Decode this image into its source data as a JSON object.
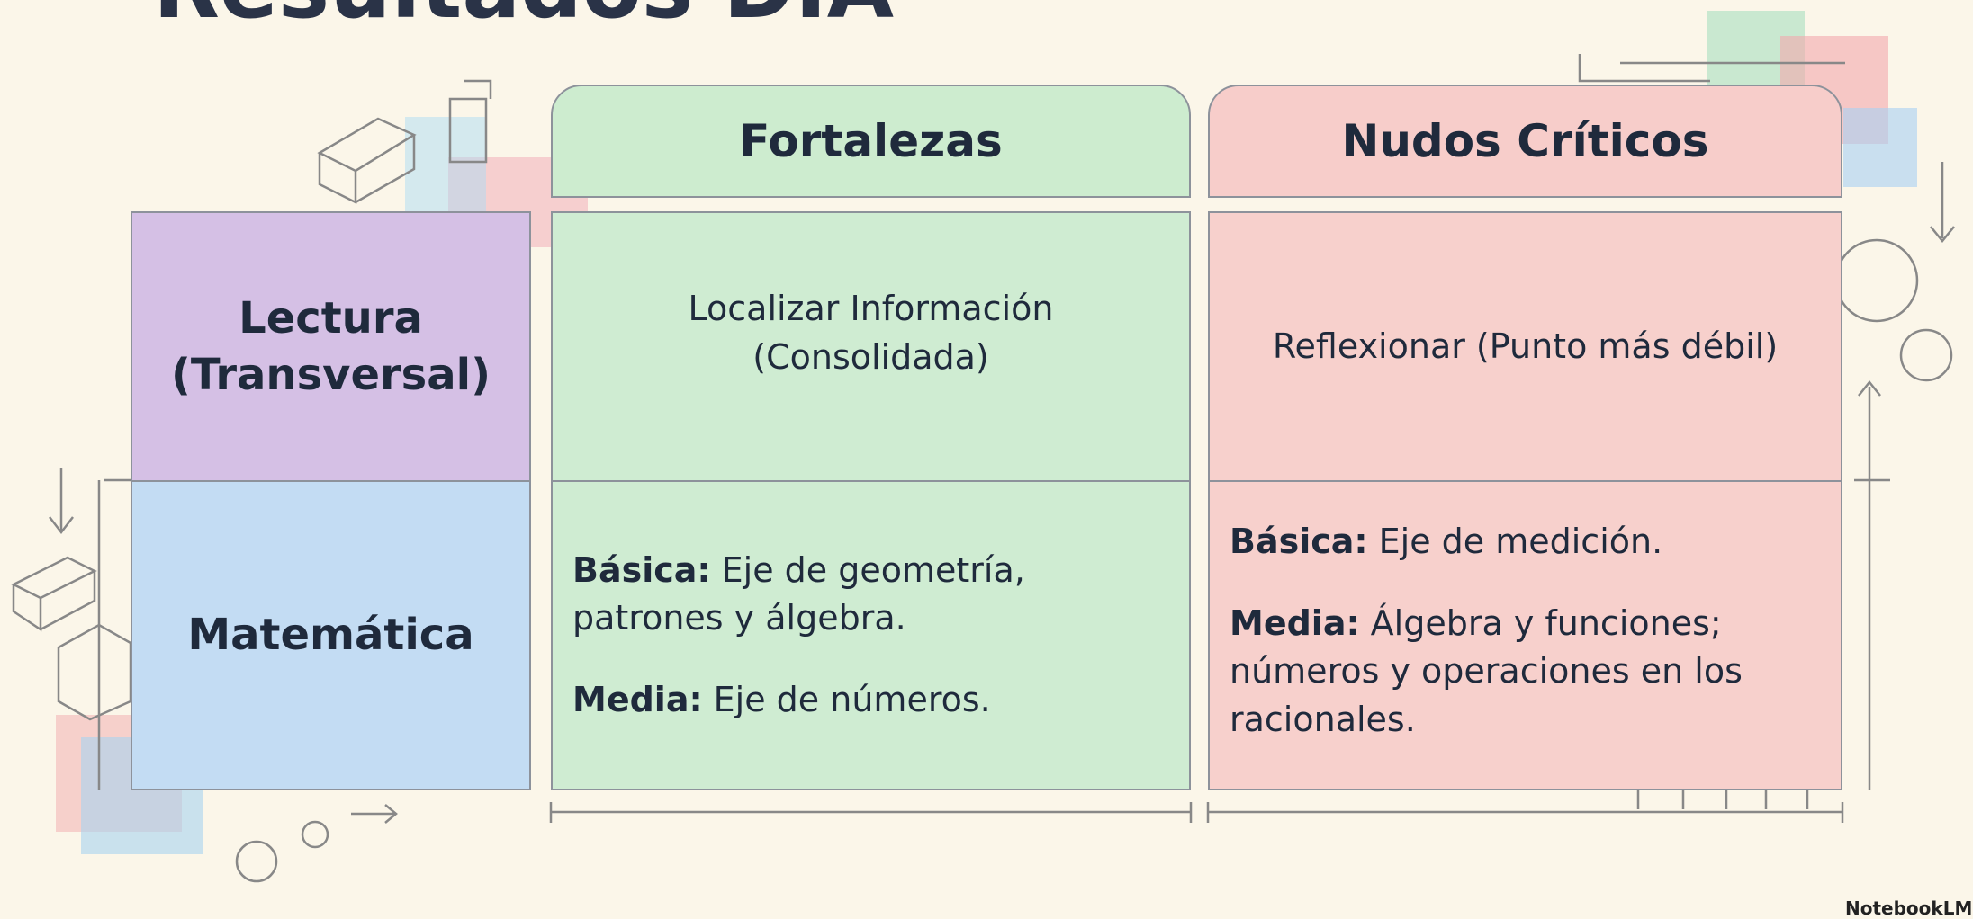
{
  "title": "Resultados DIA",
  "columns": [
    "Fortalezas",
    "Nudos Críticos"
  ],
  "rows": [
    {
      "label": "Lectura (Transversal)",
      "cells": [
        [
          {
            "text": "Localizar Información (Consolidada)"
          }
        ],
        [
          {
            "text": "Reflexionar (Punto más débil)"
          }
        ]
      ]
    },
    {
      "label": "Matemática",
      "cells": [
        [
          {
            "label": "Básica:",
            "text": "Eje de geometría, patrones y álgebra."
          },
          {
            "label": "Media:",
            "text": "Eje de números."
          }
        ],
        [
          {
            "label": "Básica:",
            "text": "Eje de medición."
          },
          {
            "label": "Media:",
            "text": "Álgebra y funciones; números y operaciones en los racionales."
          }
        ]
      ]
    }
  ],
  "watermark": "NotebookLM"
}
